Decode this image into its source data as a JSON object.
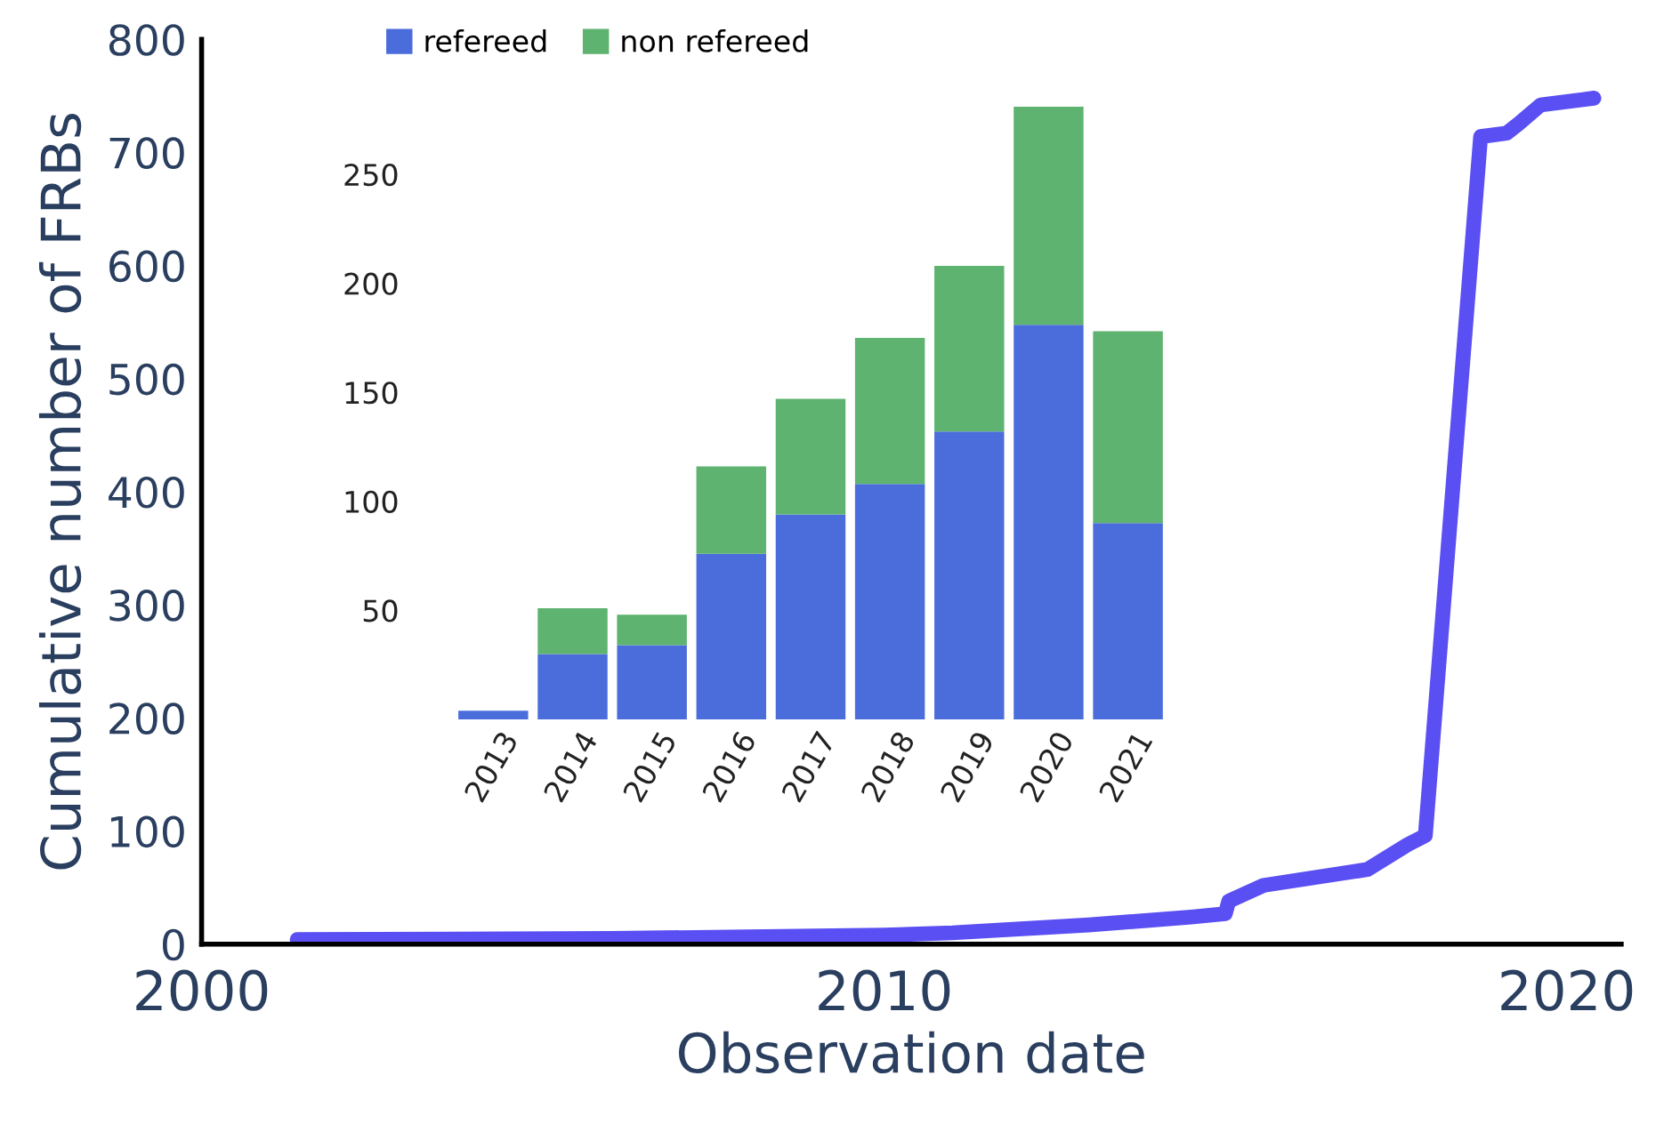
{
  "chart_data": [
    {
      "type": "line",
      "xlabel": "Observation date",
      "ylabel": "Cumulative number of FRBs",
      "xlim": [
        2000,
        2020.8
      ],
      "xticks": [
        2000,
        2010,
        2020
      ],
      "ylim": [
        0,
        800
      ],
      "yticks": [
        0,
        100,
        200,
        300,
        400,
        500,
        600,
        700,
        800
      ],
      "grid": false,
      "marker": "none",
      "line_style": "solid",
      "series": [
        {
          "color": "#5a4ff2",
          "x": [
            2001.4,
            2006,
            2010,
            2011,
            2013,
            2014.5,
            2015.0,
            2015.05,
            2015.56,
            2017.08,
            2017.67,
            2017.93,
            2018.74,
            2019.12,
            2019.29,
            2019.62,
            2020.4
          ],
          "values": [
            4,
            5,
            8,
            10,
            17,
            24,
            27,
            38,
            52,
            66,
            88,
            96,
            714,
            717,
            725,
            742,
            748
          ]
        }
      ]
    },
    {
      "type": "bar",
      "stacked": true,
      "categories": [
        "2013",
        "2014",
        "2015",
        "2016",
        "2017",
        "2018",
        "2019",
        "2020",
        "2021"
      ],
      "ylim": [
        0,
        281
      ],
      "yticks": [
        50,
        100,
        150,
        200,
        250
      ],
      "grid": false,
      "legend": "top left",
      "series": [
        {
          "name": "refereed",
          "color": "#4a6ddb",
          "values": [
            4,
            30,
            34,
            76,
            94,
            108,
            132,
            181,
            90
          ]
        },
        {
          "name": "non refereed",
          "color": "#5db36f",
          "values": [
            0,
            21,
            14,
            40,
            53,
            67,
            76,
            100,
            88
          ]
        }
      ]
    }
  ]
}
